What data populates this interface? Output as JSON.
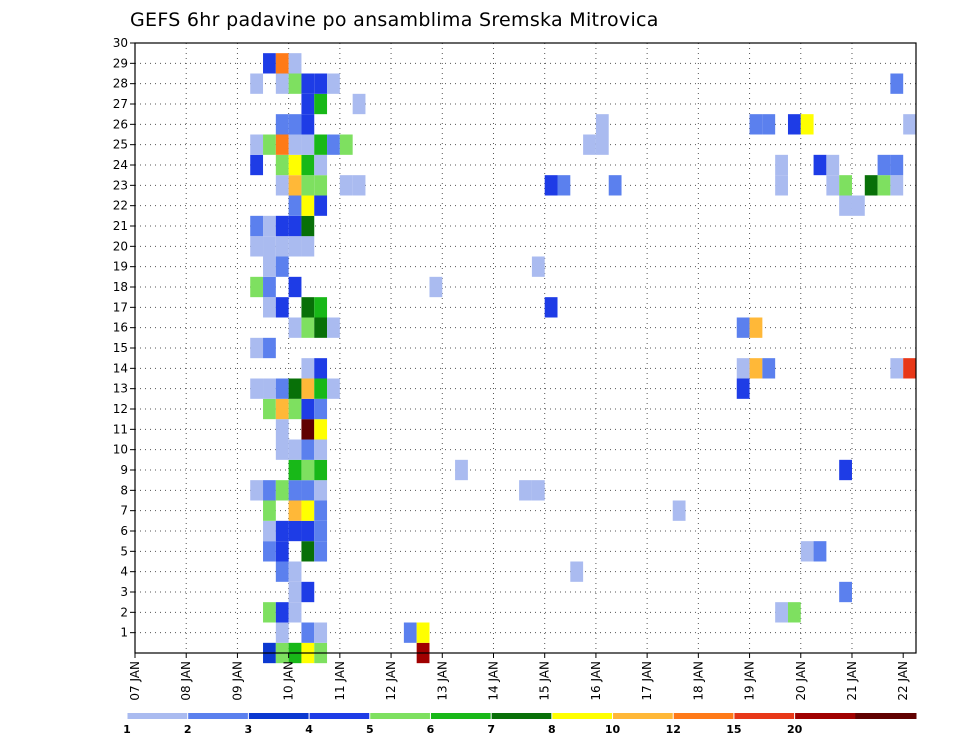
{
  "chart_data": {
    "type": "heatmap",
    "title": "GEFS 6hr padavine po ansamblima Sremska Mitrovica",
    "xlabel": "",
    "ylabel": "",
    "x_start": "07 JAN 00",
    "x_step_hours": 6,
    "x_count": 60,
    "x_ticks": [
      "07 JAN",
      "08 JAN",
      "09 JAN",
      "10 JAN",
      "11 JAN",
      "12 JAN",
      "13 JAN",
      "14 JAN",
      "15 JAN",
      "16 JAN",
      "17 JAN",
      "18 JAN",
      "19 JAN",
      "20 JAN",
      "21 JAN",
      "22 JAN"
    ],
    "y_ticks": [
      1,
      2,
      3,
      4,
      5,
      6,
      7,
      8,
      9,
      10,
      11,
      12,
      13,
      14,
      15,
      16,
      17,
      18,
      19,
      20,
      21,
      22,
      23,
      24,
      25,
      26,
      27,
      28,
      29,
      30
    ],
    "grid": true,
    "colorbar": {
      "labels": [
        "1",
        "2",
        "3",
        "4",
        "5",
        "6",
        "7",
        "8",
        "10",
        "12",
        "15",
        "20"
      ],
      "colors": [
        "#aabbf0",
        "#5b80ee",
        "#0b38d0",
        "#1e3ce6",
        "#7ee060",
        "#18b818",
        "#087008",
        "#ffff00",
        "#ffb838",
        "#ff7a18",
        "#e83818",
        "#a00000",
        "#600000"
      ]
    },
    "cells": [
      [
        10,
        0,
        2
      ],
      [
        11,
        0,
        4
      ],
      [
        12,
        0,
        5
      ],
      [
        13,
        0,
        7
      ],
      [
        14,
        0,
        4
      ],
      [
        22,
        0,
        11
      ],
      [
        11,
        1,
        0
      ],
      [
        13,
        1,
        1
      ],
      [
        14,
        1,
        0
      ],
      [
        21,
        1,
        1
      ],
      [
        22,
        1,
        7
      ],
      [
        10,
        2,
        4
      ],
      [
        11,
        2,
        3
      ],
      [
        12,
        2,
        0
      ],
      [
        50,
        2,
        0
      ],
      [
        51,
        2,
        4
      ],
      [
        12,
        3,
        0
      ],
      [
        13,
        3,
        3
      ],
      [
        55,
        3,
        1
      ],
      [
        11,
        4,
        1
      ],
      [
        12,
        4,
        0
      ],
      [
        34,
        4,
        0
      ],
      [
        10,
        5,
        1
      ],
      [
        11,
        5,
        3
      ],
      [
        13,
        5,
        6
      ],
      [
        14,
        5,
        1
      ],
      [
        52,
        5,
        0
      ],
      [
        53,
        5,
        1
      ],
      [
        10,
        6,
        0
      ],
      [
        11,
        6,
        3
      ],
      [
        12,
        6,
        3
      ],
      [
        13,
        6,
        3
      ],
      [
        14,
        6,
        1
      ],
      [
        10,
        7,
        4
      ],
      [
        12,
        7,
        8
      ],
      [
        13,
        7,
        7
      ],
      [
        14,
        7,
        1
      ],
      [
        42,
        7,
        0
      ],
      [
        9,
        8,
        0
      ],
      [
        10,
        8,
        1
      ],
      [
        11,
        8,
        4
      ],
      [
        12,
        8,
        1
      ],
      [
        13,
        8,
        1
      ],
      [
        14,
        8,
        0
      ],
      [
        30,
        8,
        0
      ],
      [
        31,
        8,
        0
      ],
      [
        12,
        9,
        5
      ],
      [
        13,
        9,
        4
      ],
      [
        14,
        9,
        5
      ],
      [
        25,
        9,
        0
      ],
      [
        55,
        9,
        3
      ],
      [
        11,
        10,
        0
      ],
      [
        12,
        10,
        0
      ],
      [
        13,
        10,
        1
      ],
      [
        14,
        10,
        0
      ],
      [
        11,
        11,
        0
      ],
      [
        13,
        11,
        12
      ],
      [
        14,
        11,
        7
      ],
      [
        10,
        12,
        4
      ],
      [
        11,
        12,
        8
      ],
      [
        12,
        12,
        4
      ],
      [
        13,
        12,
        3
      ],
      [
        14,
        12,
        1
      ],
      [
        9,
        13,
        0
      ],
      [
        10,
        13,
        0
      ],
      [
        11,
        13,
        1
      ],
      [
        12,
        13,
        6
      ],
      [
        13,
        13,
        8
      ],
      [
        14,
        13,
        5
      ],
      [
        15,
        13,
        0
      ],
      [
        47,
        13,
        3
      ],
      [
        13,
        14,
        0
      ],
      [
        14,
        14,
        3
      ],
      [
        47,
        14,
        0
      ],
      [
        48,
        14,
        8
      ],
      [
        49,
        14,
        1
      ],
      [
        59,
        14,
        0
      ],
      [
        60,
        14,
        10
      ],
      [
        9,
        15,
        0
      ],
      [
        10,
        15,
        1
      ],
      [
        12,
        16,
        0
      ],
      [
        13,
        16,
        4
      ],
      [
        14,
        16,
        6
      ],
      [
        15,
        16,
        0
      ],
      [
        47,
        16,
        1
      ],
      [
        48,
        16,
        8
      ],
      [
        10,
        17,
        0
      ],
      [
        11,
        17,
        3
      ],
      [
        13,
        17,
        6
      ],
      [
        14,
        17,
        5
      ],
      [
        32,
        17,
        3
      ],
      [
        9,
        18,
        4
      ],
      [
        10,
        18,
        1
      ],
      [
        12,
        18,
        3
      ],
      [
        23,
        18,
        0
      ],
      [
        10,
        19,
        0
      ],
      [
        11,
        19,
        1
      ],
      [
        31,
        19,
        0
      ],
      [
        9,
        20,
        0
      ],
      [
        10,
        20,
        0
      ],
      [
        11,
        20,
        0
      ],
      [
        12,
        20,
        0
      ],
      [
        13,
        20,
        0
      ],
      [
        9,
        21,
        1
      ],
      [
        10,
        21,
        0
      ],
      [
        11,
        21,
        3
      ],
      [
        12,
        21,
        3
      ],
      [
        13,
        21,
        6
      ],
      [
        12,
        22,
        1
      ],
      [
        13,
        22,
        7
      ],
      [
        14,
        22,
        3
      ],
      [
        55,
        22,
        0
      ],
      [
        56,
        22,
        0
      ],
      [
        11,
        23,
        0
      ],
      [
        12,
        23,
        8
      ],
      [
        13,
        23,
        4
      ],
      [
        14,
        23,
        4
      ],
      [
        16,
        23,
        0
      ],
      [
        17,
        23,
        0
      ],
      [
        32,
        23,
        3
      ],
      [
        33,
        23,
        1
      ],
      [
        37,
        23,
        1
      ],
      [
        50,
        23,
        0
      ],
      [
        54,
        23,
        0
      ],
      [
        55,
        23,
        4
      ],
      [
        57,
        23,
        6
      ],
      [
        58,
        23,
        4
      ],
      [
        59,
        23,
        0
      ],
      [
        9,
        24,
        3
      ],
      [
        11,
        24,
        4
      ],
      [
        12,
        24,
        7
      ],
      [
        13,
        24,
        5
      ],
      [
        14,
        24,
        0
      ],
      [
        50,
        24,
        0
      ],
      [
        53,
        24,
        3
      ],
      [
        54,
        24,
        0
      ],
      [
        58,
        24,
        1
      ],
      [
        59,
        24,
        1
      ],
      [
        9,
        25,
        0
      ],
      [
        10,
        25,
        4
      ],
      [
        11,
        25,
        9
      ],
      [
        12,
        25,
        0
      ],
      [
        13,
        25,
        0
      ],
      [
        14,
        25,
        5
      ],
      [
        15,
        25,
        1
      ],
      [
        16,
        25,
        4
      ],
      [
        35,
        25,
        0
      ],
      [
        36,
        25,
        0
      ],
      [
        11,
        26,
        1
      ],
      [
        12,
        26,
        1
      ],
      [
        13,
        26,
        3
      ],
      [
        36,
        26,
        0
      ],
      [
        48,
        26,
        1
      ],
      [
        49,
        26,
        1
      ],
      [
        51,
        26,
        3
      ],
      [
        52,
        26,
        7
      ],
      [
        60,
        26,
        0
      ],
      [
        13,
        27,
        3
      ],
      [
        14,
        27,
        5
      ],
      [
        17,
        27,
        0
      ],
      [
        9,
        28,
        0
      ],
      [
        11,
        28,
        0
      ],
      [
        12,
        28,
        4
      ],
      [
        13,
        28,
        3
      ],
      [
        14,
        28,
        3
      ],
      [
        15,
        28,
        0
      ],
      [
        59,
        28,
        1
      ],
      [
        10,
        29,
        3
      ],
      [
        11,
        29,
        9
      ],
      [
        12,
        29,
        0
      ]
    ]
  }
}
